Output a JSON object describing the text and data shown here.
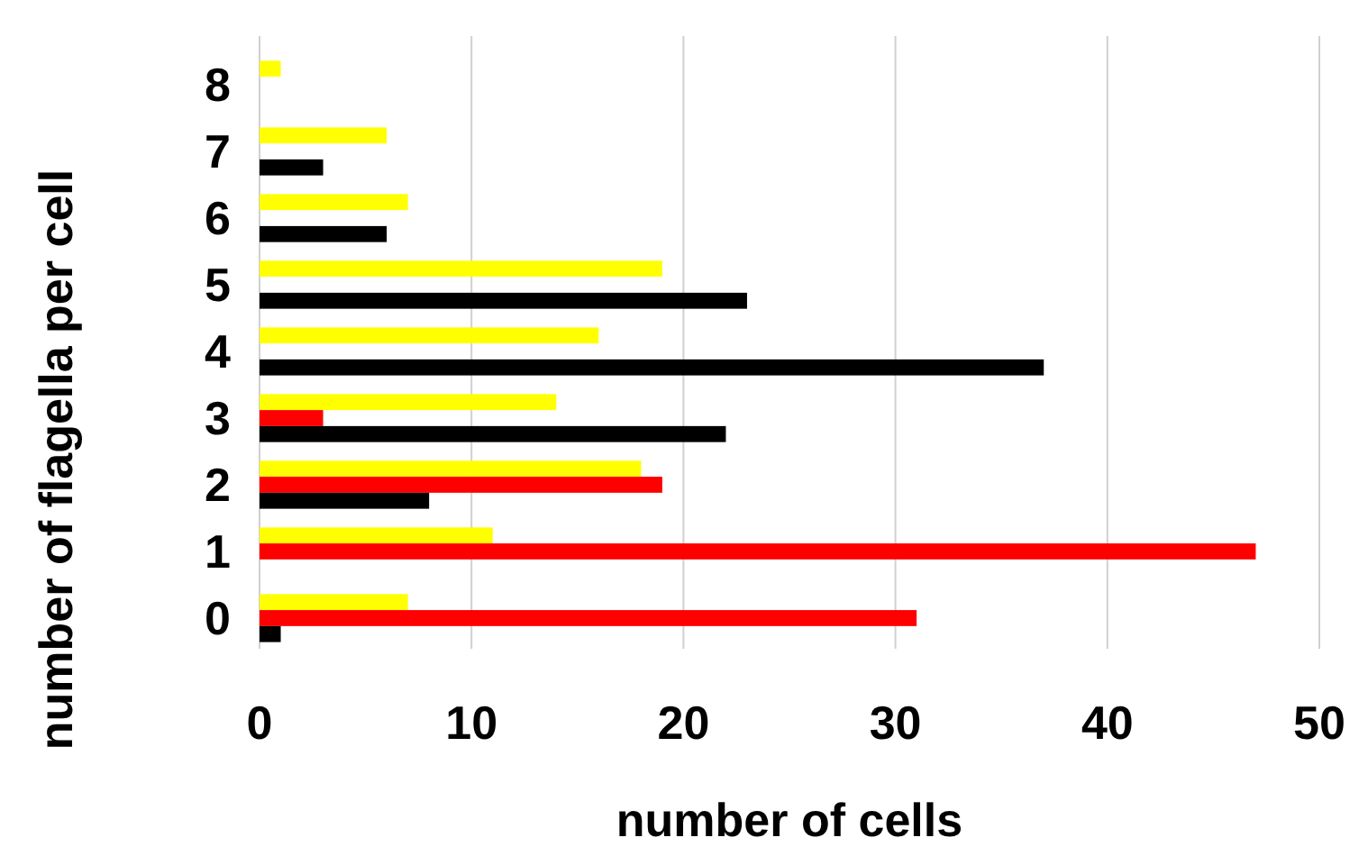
{
  "chart_data": {
    "type": "bar",
    "orientation": "horizontal",
    "xlabel": "number of cells",
    "ylabel": "number of flagella per cell",
    "categories": [
      "8",
      "7",
      "6",
      "5",
      "4",
      "3",
      "2",
      "1",
      "0"
    ],
    "series": [
      {
        "color": "#ffff00",
        "values": [
          1,
          6,
          7,
          19,
          16,
          14,
          18,
          11,
          7
        ]
      },
      {
        "color": "#ff0000",
        "values": [
          0,
          0,
          0,
          0,
          0,
          3,
          19,
          47,
          31
        ]
      },
      {
        "color": "#000000",
        "values": [
          0,
          3,
          6,
          23,
          37,
          22,
          8,
          0,
          1
        ]
      }
    ],
    "xlim": [
      0,
      50
    ],
    "xticks": [
      0,
      10,
      20,
      30,
      40,
      50
    ],
    "grid": "x"
  }
}
